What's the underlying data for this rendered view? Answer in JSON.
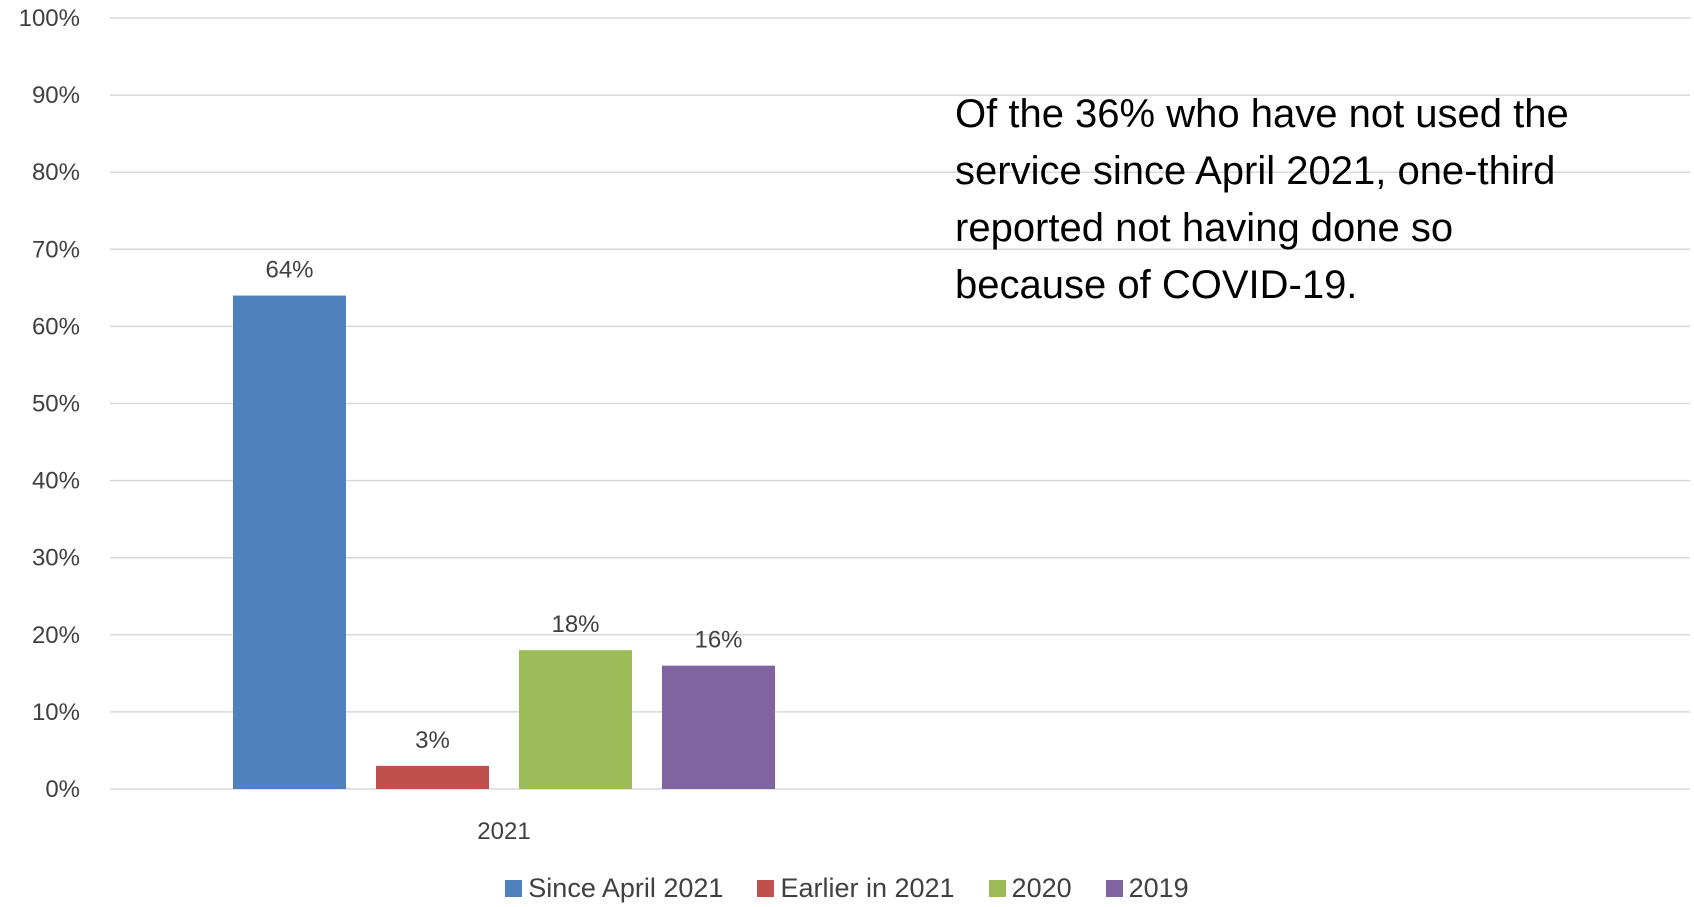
{
  "chart_data": {
    "type": "bar",
    "categories": [
      "2021"
    ],
    "series": [
      {
        "name": "Since April 2021",
        "values": [
          64
        ],
        "color": "#4f81bd",
        "label": "64%"
      },
      {
        "name": "Earlier in 2021",
        "values": [
          3
        ],
        "color": "#c0504d",
        "label": "3%"
      },
      {
        "name": "2020",
        "values": [
          18
        ],
        "color": "#9bbb59",
        "label": "18%"
      },
      {
        "name": "2019",
        "values": [
          16
        ],
        "color": "#8064a2",
        "label": "16%"
      }
    ],
    "yticks": [
      "0%",
      "10%",
      "20%",
      "30%",
      "40%",
      "50%",
      "60%",
      "70%",
      "80%",
      "90%",
      "100%"
    ],
    "ylim": [
      0,
      100
    ],
    "grid": true,
    "legend_position": "bottom"
  },
  "annotation": "Of the 36% who have not used the service since April 2021, one-third reported not having done so because of COVID-19.",
  "colors": {
    "grid": "#d9d9d9",
    "text": "#404040"
  }
}
